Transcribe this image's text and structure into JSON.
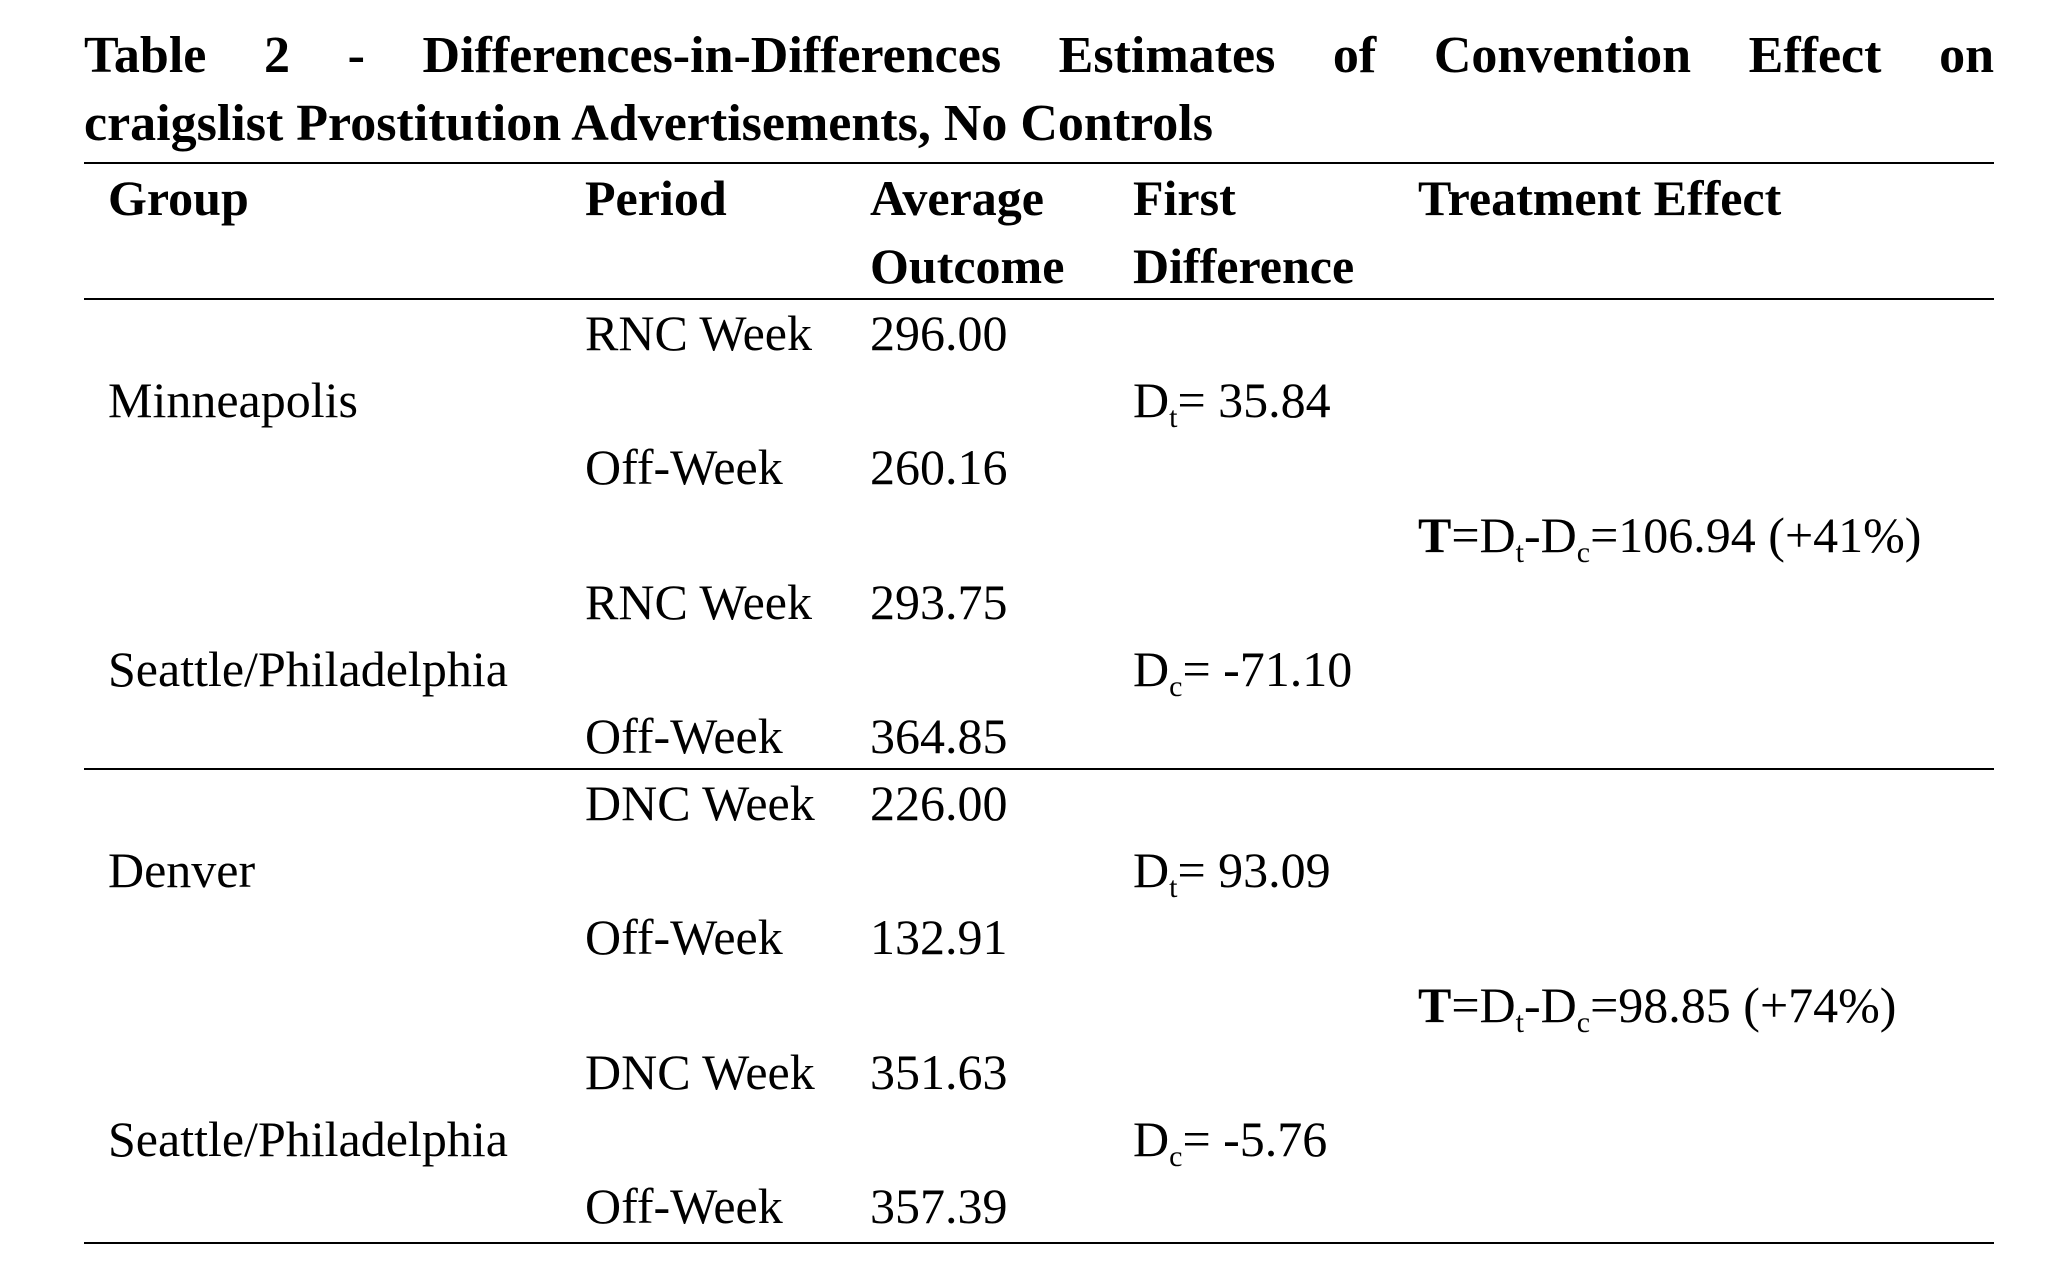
{
  "title": {
    "line1": "Table 2 - Differences-in-Differences Estimates of Convention Effect on",
    "line2": "craigslist Prostitution Advertisements, No Controls"
  },
  "headers": {
    "group": "Group",
    "period": "Period",
    "average_outcome_1": "Average",
    "average_outcome_2": "Outcome",
    "first_difference_1": "First",
    "first_difference_2": "Difference",
    "treatment_effect": "Treatment Effect"
  },
  "blocks": [
    {
      "treatment": {
        "group": "Minneapolis",
        "period_a": "RNC Week",
        "value_a": "296.00",
        "period_b": "Off-Week",
        "value_b": "260.16",
        "diff_sym": "D",
        "diff_sub": "t",
        "diff_val": "= 35.84"
      },
      "control": {
        "group": "Seattle/Philadelphia",
        "period_a": "RNC Week",
        "value_a": "293.75",
        "period_b": "Off-Week",
        "value_b": "364.85",
        "diff_sym": "D",
        "diff_sub": "c",
        "diff_val": "= -71.10"
      },
      "effect": {
        "t": "T",
        "eq": "=D",
        "sub_t": "t",
        "minus": "-D",
        "sub_c": "c",
        "val": "=106.94 (+41%)"
      }
    },
    {
      "treatment": {
        "group": "Denver",
        "period_a": "DNC Week",
        "value_a": "226.00",
        "period_b": "Off-Week",
        "value_b": "132.91",
        "diff_sym": "D",
        "diff_sub": "t",
        "diff_val": "= 93.09"
      },
      "control": {
        "group": "Seattle/Philadelphia",
        "period_a": "DNC Week",
        "value_a": "351.63",
        "period_b": "Off-Week",
        "value_b": "357.39",
        "diff_sym": "D",
        "diff_sub": "c",
        "diff_val": "= -5.76"
      },
      "effect": {
        "t": "T",
        "eq": "=D",
        "sub_t": "t",
        "minus": "-D",
        "sub_c": "c",
        "val": "=98.85 (+74%)"
      }
    }
  ]
}
